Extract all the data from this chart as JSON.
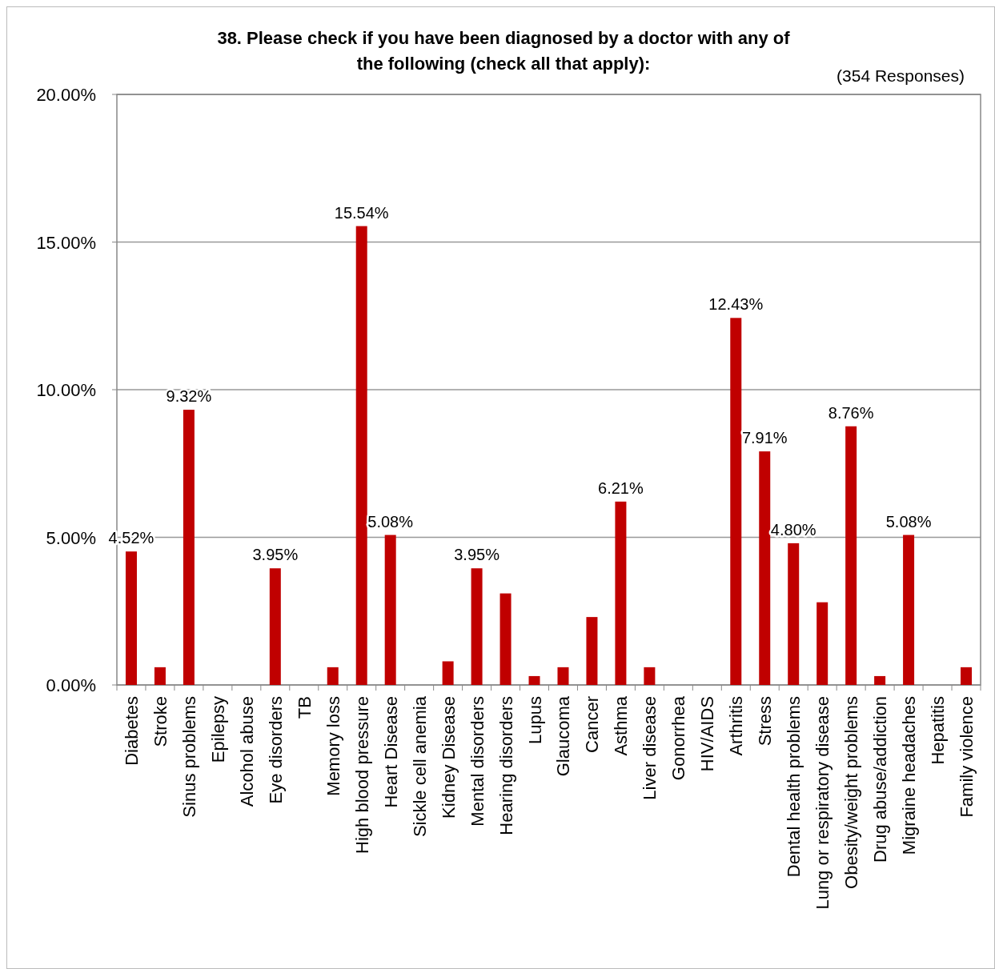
{
  "chart_data": {
    "type": "bar",
    "title": "38.  Please check if you have been diagnosed by a doctor with any of the following (check all that apply):",
    "annotations": [
      "(354 Responses)"
    ],
    "categories": [
      "Diabetes",
      "Stroke",
      "Sinus problems",
      "Epilepsy",
      "Alcohol abuse",
      "Eye disorders",
      "TB",
      "Memory loss",
      "High blood pressure",
      "Heart Disease",
      "Sickle cell anemia",
      "Kidney Disease",
      "Mental disorders",
      "Hearing disorders",
      "Lupus",
      "Glaucoma",
      "Cancer",
      "Asthma",
      "Liver disease",
      "Gonorrhea",
      "HIV/AIDS",
      "Arthritis",
      "Stress",
      "Dental health problems",
      "Lung or respiratory disease",
      "Obesity/weight problems",
      "Drug abuse/addiction",
      "Migraine headaches",
      "Hepatitis",
      "Family violence"
    ],
    "values": [
      4.52,
      0.6,
      9.32,
      0,
      0,
      3.95,
      0,
      0.6,
      15.54,
      5.08,
      0,
      0.8,
      3.95,
      3.1,
      0.3,
      0.6,
      2.3,
      6.21,
      0.6,
      0,
      0,
      12.43,
      7.91,
      4.8,
      2.8,
      8.76,
      0.3,
      5.08,
      0,
      0.6
    ],
    "value_labels": [
      "4.52%",
      null,
      "9.32%",
      null,
      null,
      "3.95%",
      null,
      null,
      "15.54%",
      "5.08%",
      null,
      null,
      "3.95%",
      null,
      null,
      null,
      null,
      "6.21%",
      null,
      null,
      null,
      "12.43%",
      "7.91%",
      "4.80%",
      null,
      "8.76%",
      null,
      "5.08%",
      null,
      null
    ],
    "color": "#c00000",
    "ylim": [
      0,
      20
    ],
    "yticks": [
      {
        "value": 0,
        "label": "0.00%"
      },
      {
        "value": 5,
        "label": "5.00%"
      },
      {
        "value": 10,
        "label": "10.00%"
      },
      {
        "value": 15,
        "label": "15.00%"
      },
      {
        "value": 20,
        "label": "20.00%"
      }
    ],
    "grid": "y"
  }
}
